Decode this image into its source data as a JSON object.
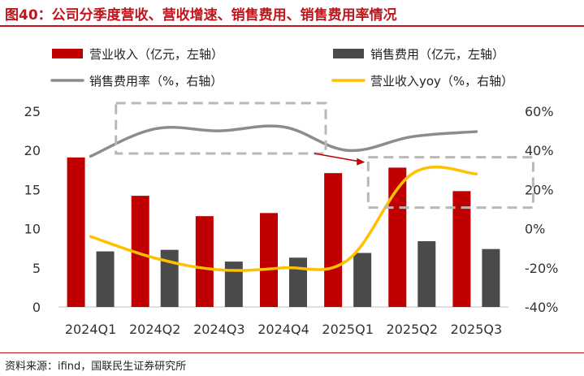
{
  "title": "图40：公司分季度营收、营收增速、销售费用、销售费用率情况",
  "source": "资料来源：ifind，国联民生证券研究所",
  "colors": {
    "revenue": "#c00000",
    "sales_expense": "#4a4a4a",
    "sales_expense_rate": "#8c8c8c",
    "revenue_yoy": "#ffc000",
    "title": "#c0151b",
    "annotation_box": "#b8b8b8",
    "annotation_arrow": "#c00000"
  },
  "chart_data": {
    "type": "bar",
    "categories": [
      "2024Q1",
      "2024Q2",
      "2024Q3",
      "2024Q4",
      "2025Q1",
      "2025Q2",
      "2025Q3"
    ],
    "series": [
      {
        "name": "营业收入（亿元，左轴）",
        "type": "bar",
        "axis": "left",
        "values": [
          19.1,
          14.2,
          11.6,
          12.0,
          17.1,
          17.8,
          14.8
        ]
      },
      {
        "name": "销售费用（亿元，左轴）",
        "type": "bar",
        "axis": "left",
        "values": [
          7.1,
          7.3,
          5.8,
          6.3,
          6.9,
          8.4,
          7.4
        ]
      },
      {
        "name": "销售费用率（%，右轴）",
        "type": "line",
        "axis": "right",
        "values": [
          37,
          51,
          50,
          52,
          40,
          47,
          49.6
        ]
      },
      {
        "name": "营业收入yoy（%，右轴）",
        "type": "line",
        "axis": "right",
        "values": [
          -4,
          -15,
          -21,
          -20,
          -16,
          28,
          28
        ]
      }
    ],
    "left_axis": {
      "ylim": [
        0,
        25
      ],
      "ticks": [
        "0",
        "5",
        "10",
        "15",
        "20",
        "25"
      ]
    },
    "right_axis": {
      "ylim": [
        -40,
        60
      ],
      "ticks": [
        "-40%",
        "-20%",
        "0%",
        "20%",
        "40%",
        "60%"
      ]
    },
    "legend_position": "top",
    "grid": false,
    "annotations": [
      {
        "kind": "dashed-box",
        "around": "销售费用率, 2024Q2–2024Q4"
      },
      {
        "kind": "dashed-box",
        "around": "营业收入yoy, 2025Q2–2025Q3"
      },
      {
        "kind": "arrow",
        "from": "first box",
        "to": "second box"
      }
    ]
  }
}
